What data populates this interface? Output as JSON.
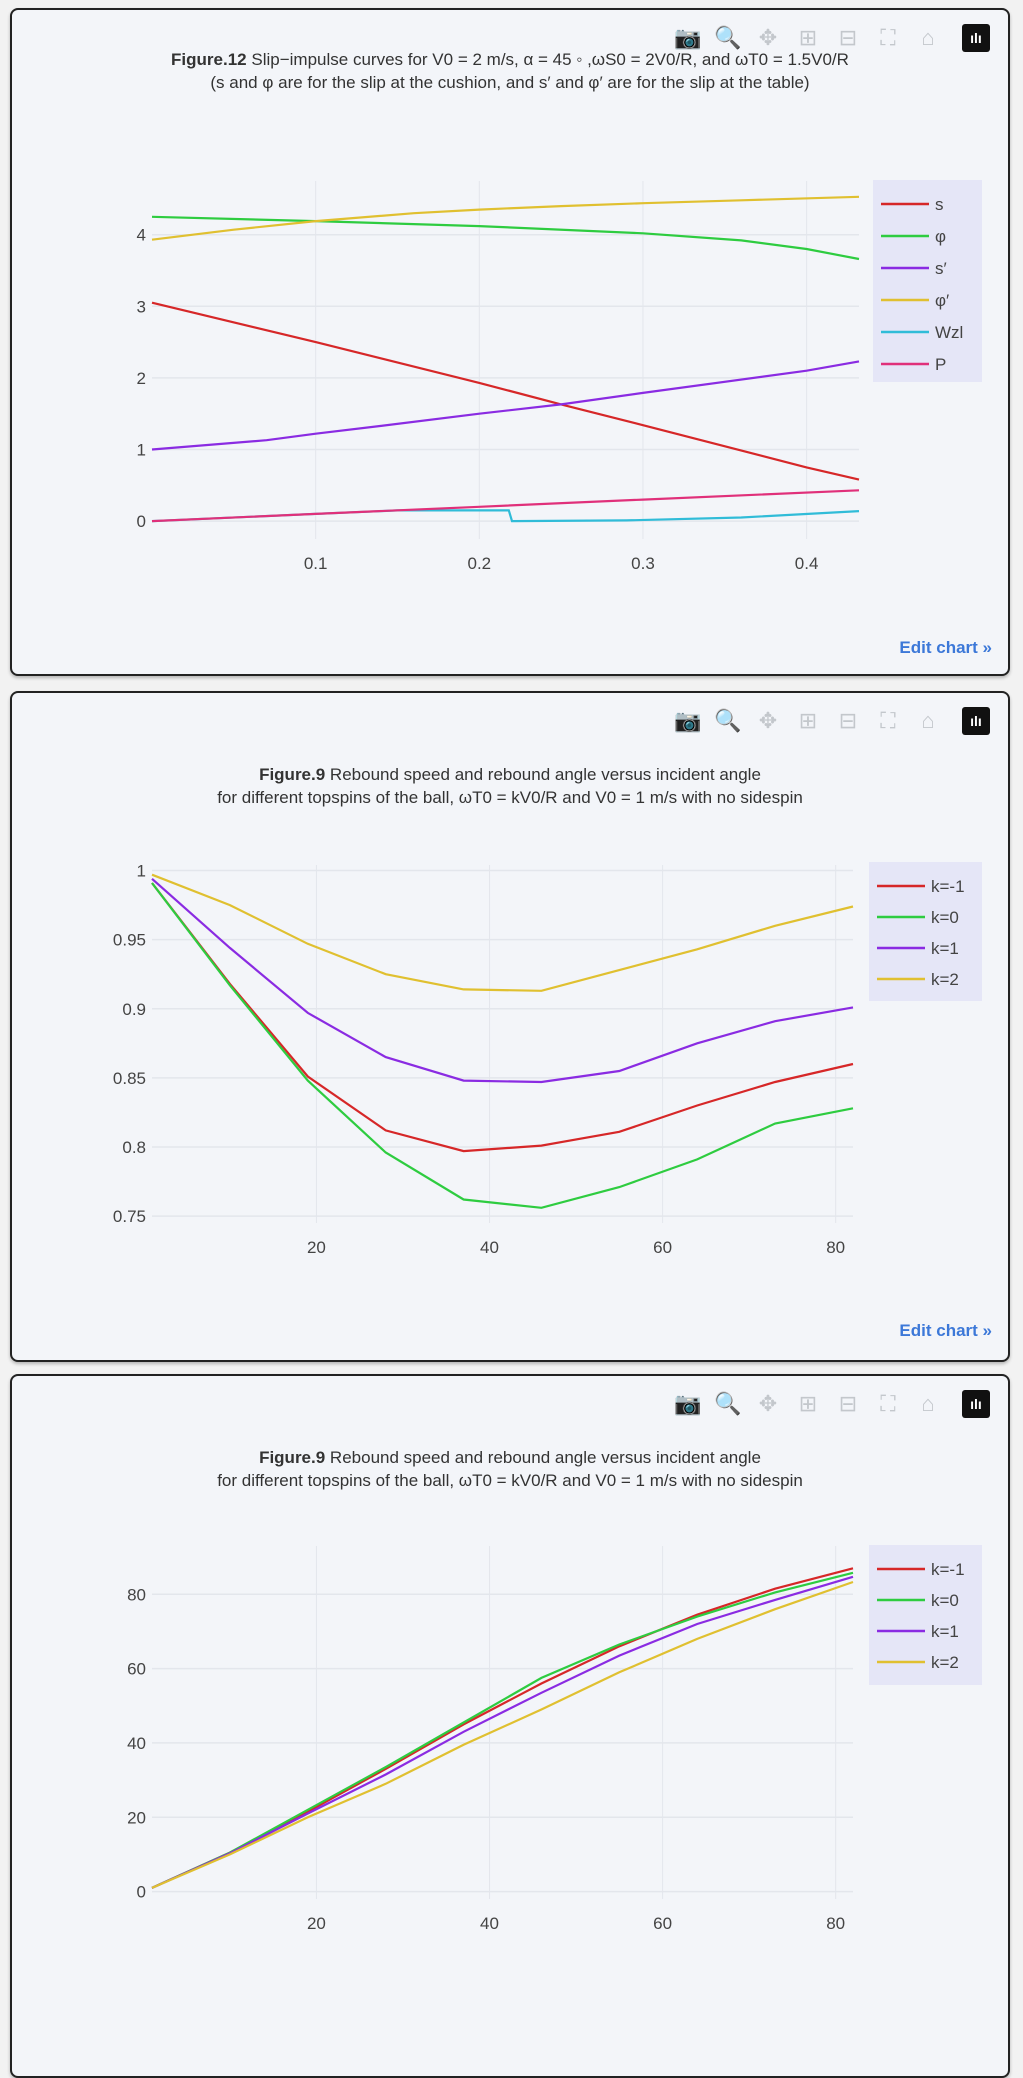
{
  "toolbar": {
    "icons": [
      "camera-icon",
      "zoom-icon",
      "pan-icon",
      "zoom-in-icon",
      "zoom-out-icon",
      "autoscale-icon",
      "home-icon",
      "plotly-logo-icon"
    ]
  },
  "edit_chart_label": "Edit chart »",
  "chart_data": [
    {
      "type": "line",
      "title_bold": "Figure.12",
      "title": "Slip−impulse curves  for V0 = 2 m/s, α = 45 ◦ ,ωS0 = 2V0/R, and ωT0 = 1.5V0/R",
      "subtitle": "(s and φ are for the slip at the cushion,  and s′ and φ′ are for the slip at the table)",
      "xlabel": "",
      "ylabel": "",
      "xlim": [
        0,
        0.432
      ],
      "ylim": [
        -0.25,
        4.75
      ],
      "grid": true,
      "legend": "top-right",
      "xticks": [
        0.1,
        0.2,
        0.3,
        0.4
      ],
      "xtick_labels": [
        "0.1",
        "0.2",
        "0.3",
        "0.4"
      ],
      "yticks": [
        0,
        1,
        2,
        3,
        4
      ],
      "ytick_labels": [
        "0",
        "1",
        "2",
        "3",
        "4"
      ],
      "series": [
        {
          "name": "s",
          "color": "#d62728",
          "x": [
            0,
            0.1,
            0.2,
            0.25,
            0.3,
            0.4,
            0.432
          ],
          "y": [
            3.05,
            2.5,
            1.93,
            1.63,
            1.34,
            0.75,
            0.58
          ]
        },
        {
          "name": "φ",
          "color": "#2ecc40",
          "x": [
            0,
            0.1,
            0.2,
            0.3,
            0.36,
            0.4,
            0.432
          ],
          "y": [
            4.25,
            4.19,
            4.12,
            4.02,
            3.92,
            3.8,
            3.66
          ]
        },
        {
          "name": "s′",
          "color": "#8a2be2",
          "x": [
            0,
            0.07,
            0.1,
            0.14,
            0.2,
            0.25,
            0.3,
            0.4,
            0.432
          ],
          "y": [
            1.0,
            1.13,
            1.22,
            1.33,
            1.5,
            1.63,
            1.79,
            2.1,
            2.23
          ]
        },
        {
          "name": "φ′",
          "color": "#e0c030",
          "x": [
            0,
            0.05,
            0.1,
            0.16,
            0.2,
            0.25,
            0.3,
            0.36,
            0.432
          ],
          "y": [
            3.93,
            4.07,
            4.19,
            4.3,
            4.35,
            4.4,
            4.44,
            4.48,
            4.53
          ]
        },
        {
          "name": "Wzl",
          "color": "#30bcd8",
          "x": [
            0,
            0.1,
            0.15,
            0.218,
            0.22,
            0.29,
            0.36,
            0.432
          ],
          "y": [
            0,
            0.1,
            0.15,
            0.15,
            0,
            0.01,
            0.05,
            0.14
          ]
        },
        {
          "name": "P",
          "color": "#e0307a",
          "x": [
            0,
            0.1,
            0.2,
            0.3,
            0.432
          ],
          "y": [
            0,
            0.1,
            0.2,
            0.3,
            0.43
          ]
        }
      ]
    },
    {
      "type": "line",
      "title_bold": "Figure.9",
      "title": "Rebound speed and rebound angle versus incident angle",
      "subtitle": "for different topspins of the ball, ωT0 = kV0/R and V0 = 1 m/s with no sidespin",
      "xlabel": "",
      "ylabel": "",
      "xlim": [
        1,
        82
      ],
      "ylim": [
        0.745,
        1.004
      ],
      "grid": true,
      "legend": "top-right",
      "xticks": [
        20,
        40,
        60,
        80
      ],
      "xtick_labels": [
        "20",
        "40",
        "60",
        "80"
      ],
      "yticks": [
        0.75,
        0.8,
        0.85,
        0.9,
        0.95,
        1
      ],
      "ytick_labels": [
        "0.75",
        "0.8",
        "0.85",
        "0.9",
        "0.95",
        "1"
      ],
      "series": [
        {
          "name": "k=-1",
          "color": "#d62728",
          "x": [
            1,
            10,
            19,
            28,
            37,
            46,
            55,
            64,
            73,
            82
          ],
          "y": [
            0.991,
            0.918,
            0.851,
            0.812,
            0.797,
            0.801,
            0.811,
            0.83,
            0.847,
            0.86
          ]
        },
        {
          "name": "k=0",
          "color": "#2ecc40",
          "x": [
            1,
            10,
            19,
            28,
            37,
            46,
            55,
            64,
            73,
            82
          ],
          "y": [
            0.991,
            0.917,
            0.848,
            0.796,
            0.762,
            0.756,
            0.771,
            0.791,
            0.817,
            0.828
          ]
        },
        {
          "name": "k=1",
          "color": "#8a2be2",
          "x": [
            1,
            10,
            19,
            28,
            37,
            46,
            55,
            64,
            73,
            82
          ],
          "y": [
            0.994,
            0.944,
            0.897,
            0.865,
            0.848,
            0.847,
            0.855,
            0.875,
            0.891,
            0.901
          ]
        },
        {
          "name": "k=2",
          "color": "#e0c030",
          "x": [
            1,
            10,
            19,
            28,
            37,
            46,
            55,
            64,
            73,
            82
          ],
          "y": [
            0.997,
            0.975,
            0.947,
            0.925,
            0.914,
            0.913,
            0.928,
            0.943,
            0.96,
            0.974
          ]
        }
      ]
    },
    {
      "type": "line",
      "title_bold": "Figure.9",
      "title": "Rebound speed and rebound angle versus incident angle",
      "subtitle": "for different topspins of the ball, ωT0 = kV0/R and V0 = 1 m/s with no sidespin",
      "xlabel": "",
      "ylabel": "",
      "xlim": [
        1,
        82
      ],
      "ylim": [
        -2,
        93
      ],
      "grid": true,
      "legend": "top-right",
      "xticks": [
        20,
        40,
        60,
        80
      ],
      "xtick_labels": [
        "20",
        "40",
        "60",
        "80"
      ],
      "yticks": [
        0,
        20,
        40,
        60,
        80
      ],
      "ytick_labels": [
        "0",
        "20",
        "40",
        "60",
        "80"
      ],
      "series": [
        {
          "name": "k=-1",
          "color": "#d62728",
          "x": [
            1,
            10,
            19,
            28,
            37,
            46,
            55,
            64,
            73,
            82
          ],
          "y": [
            1,
            10.5,
            21.5,
            33,
            45,
            56,
            66,
            74.5,
            81.5,
            87
          ]
        },
        {
          "name": "k=0",
          "color": "#2ecc40",
          "x": [
            1,
            10,
            19,
            28,
            37,
            46,
            55,
            64,
            73,
            82
          ],
          "y": [
            1,
            10.5,
            22,
            33.5,
            45.5,
            57.5,
            66.5,
            74,
            80.5,
            85.8
          ]
        },
        {
          "name": "k=1",
          "color": "#8a2be2",
          "x": [
            1,
            10,
            19,
            28,
            37,
            46,
            55,
            64,
            73,
            82
          ],
          "y": [
            1,
            10.3,
            21,
            31.5,
            43,
            53.5,
            63.5,
            72,
            78.5,
            84.7
          ]
        },
        {
          "name": "k=2",
          "color": "#e0c030",
          "x": [
            1,
            10,
            19,
            28,
            37,
            46,
            55,
            64,
            73,
            82
          ],
          "y": [
            1,
            10,
            20,
            29,
            39.5,
            49,
            59,
            68,
            76,
            83.3
          ]
        }
      ]
    }
  ]
}
